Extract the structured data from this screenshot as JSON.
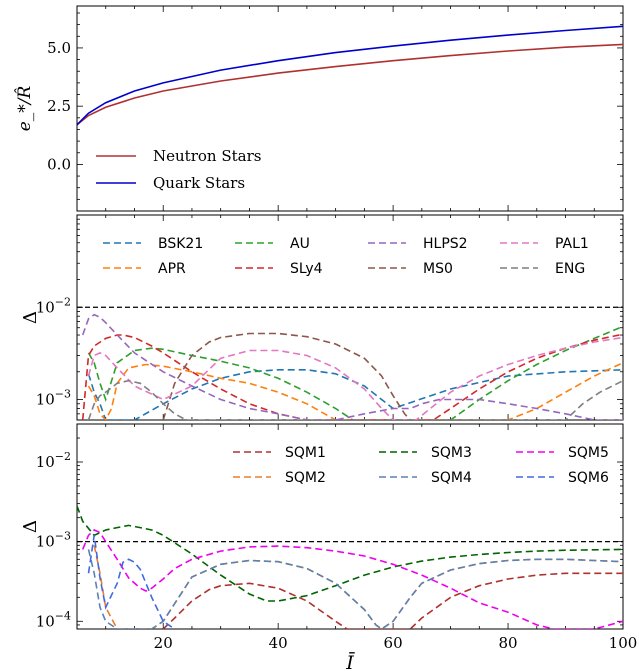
{
  "chart_data": [
    {
      "type": "line",
      "ylabel": "e_*/R̂",
      "xlim": [
        5,
        100
      ],
      "ylim": [
        -2.0,
        6.8
      ],
      "yticks": [
        "0.0",
        "2.5",
        "5.0"
      ],
      "yticks_values": [
        0,
        2.5,
        5
      ],
      "series": [
        {
          "name": "Neutron Stars",
          "color": "#b03030",
          "x": [
            5,
            7,
            10,
            15,
            20,
            30,
            40,
            50,
            60,
            70,
            80,
            90,
            100
          ],
          "y": [
            1.7,
            2.1,
            2.45,
            2.85,
            3.15,
            3.58,
            3.92,
            4.2,
            4.45,
            4.67,
            4.87,
            5.03,
            5.15
          ]
        },
        {
          "name": "Quark Stars",
          "color": "#0000cc",
          "x": [
            5,
            7,
            10,
            15,
            20,
            30,
            40,
            50,
            60,
            70,
            80,
            90,
            100
          ],
          "y": [
            1.7,
            2.2,
            2.65,
            3.15,
            3.5,
            4.05,
            4.45,
            4.8,
            5.08,
            5.33,
            5.55,
            5.75,
            5.93
          ]
        }
      ]
    },
    {
      "type": "line",
      "yscale": "log",
      "ylabel": "Δ",
      "xlim": [
        5,
        100
      ],
      "ylim": [
        0.0006,
        0.1
      ],
      "yticks": [
        "10",
        "10"
      ],
      "yticks_exp": [
        "−3",
        "−2"
      ],
      "yticks_values": [
        0.001,
        0.01
      ],
      "reference_line": 0.01,
      "series": [
        {
          "name": "BSK21",
          "color": "#1f77b4",
          "x": [
            7,
            8,
            9,
            10,
            11,
            12,
            15,
            20,
            25,
            30,
            35,
            40,
            45,
            50,
            55,
            60,
            70,
            80,
            90,
            100
          ],
          "y": [
            0.0019,
            0.0012,
            0.0009,
            0.0006,
            0.0006,
            0.0006,
            0.0006,
            0.0009,
            0.0013,
            0.0017,
            0.002,
            0.0021,
            0.0021,
            0.0019,
            0.0014,
            0.0008,
            0.0013,
            0.0018,
            0.002,
            0.0021
          ]
        },
        {
          "name": "APR",
          "color": "#ff7f0e",
          "x": [
            7,
            8,
            9,
            10,
            11,
            12,
            14,
            17,
            20,
            25,
            30,
            35,
            40,
            45,
            50,
            55,
            60,
            65,
            70,
            75,
            80,
            85,
            90,
            95,
            100
          ],
          "y": [
            0.0014,
            0.0011,
            0.0007,
            0.0006,
            0.0008,
            0.0015,
            0.0022,
            0.0024,
            0.0023,
            0.002,
            0.0017,
            0.0015,
            0.0012,
            0.0009,
            0.0006,
            0.0006,
            0.0006,
            0.0006,
            0.0006,
            0.0006,
            0.0006,
            0.0008,
            0.0012,
            0.0018,
            0.0025
          ]
        },
        {
          "name": "AU",
          "color": "#2ca02c",
          "x": [
            7,
            8,
            9,
            10,
            12,
            15,
            18,
            20,
            25,
            30,
            35,
            40,
            45,
            50,
            53,
            55,
            60,
            65,
            70,
            75,
            80,
            85,
            90,
            95,
            100
          ],
          "y": [
            0.0032,
            0.0025,
            0.0015,
            0.001,
            0.0025,
            0.0034,
            0.0036,
            0.0035,
            0.003,
            0.0026,
            0.0022,
            0.0017,
            0.0012,
            0.0008,
            0.0006,
            0.0006,
            0.0006,
            0.0006,
            0.0006,
            0.001,
            0.0016,
            0.0024,
            0.0034,
            0.0046,
            0.0062
          ]
        },
        {
          "name": "SLy4",
          "color": "#d62728",
          "x": [
            6,
            7,
            8,
            10,
            12,
            13,
            15,
            18,
            20,
            25,
            30,
            35,
            40,
            45,
            50,
            60,
            67,
            70,
            75,
            80,
            85,
            90,
            95,
            100
          ],
          "y": [
            0.0006,
            0.003,
            0.0038,
            0.0046,
            0.005,
            0.005,
            0.0047,
            0.0038,
            0.0032,
            0.002,
            0.0013,
            0.0009,
            0.0007,
            0.0006,
            0.0006,
            0.0006,
            0.0006,
            0.0008,
            0.0013,
            0.002,
            0.0028,
            0.0036,
            0.0044,
            0.0051
          ]
        },
        {
          "name": "HLPS2",
          "color": "#9467bd",
          "x": [
            6,
            7,
            8,
            9,
            10,
            12,
            15,
            20,
            25,
            30,
            35,
            40,
            45,
            50,
            55,
            60,
            63,
            65,
            68,
            70,
            75,
            80,
            85,
            90,
            95,
            100
          ],
          "y": [
            0.005,
            0.0075,
            0.0083,
            0.0078,
            0.0068,
            0.005,
            0.0032,
            0.002,
            0.0014,
            0.001,
            0.0008,
            0.0007,
            0.0006,
            0.0006,
            0.0007,
            0.0008,
            0.0008,
            0.0009,
            0.001,
            0.001,
            0.001,
            0.0009,
            0.0008,
            0.0007,
            0.0006,
            0.0006
          ]
        },
        {
          "name": "MS0",
          "color": "#8c564b",
          "x": [
            20,
            22,
            25,
            28,
            30,
            35,
            40,
            45,
            50,
            55,
            58,
            60,
            62,
            63
          ],
          "y": [
            0.0006,
            0.0015,
            0.003,
            0.0042,
            0.0047,
            0.0052,
            0.0052,
            0.0048,
            0.004,
            0.0028,
            0.0018,
            0.0011,
            0.0007,
            0.0006
          ]
        },
        {
          "name": "PAL1",
          "color": "#e377c2",
          "x": [
            7,
            8,
            9,
            10,
            12,
            15,
            20,
            25,
            30,
            35,
            40,
            45,
            50,
            55,
            58,
            60,
            62,
            64,
            70,
            75,
            80,
            85,
            90,
            95,
            100
          ],
          "y": [
            0.0018,
            0.003,
            0.0032,
            0.003,
            0.0022,
            0.0014,
            0.001,
            0.0014,
            0.0028,
            0.0034,
            0.0034,
            0.003,
            0.0022,
            0.0013,
            0.0008,
            0.0006,
            0.0006,
            0.0006,
            0.0012,
            0.0018,
            0.0024,
            0.003,
            0.0036,
            0.0042,
            0.0047
          ]
        },
        {
          "name": "ENG",
          "color": "#7f7f7f",
          "x": [
            7,
            8,
            9,
            10,
            12,
            14,
            16,
            18,
            20,
            22,
            24,
            25,
            90,
            93,
            96,
            100
          ],
          "y": [
            0.0006,
            0.0009,
            0.0011,
            0.0012,
            0.0015,
            0.0016,
            0.0015,
            0.0012,
            0.0009,
            0.0007,
            0.0006,
            0.0006,
            0.0006,
            0.0009,
            0.0012,
            0.0016
          ]
        }
      ],
      "legend": {
        "placement": "top",
        "ncol": 4
      }
    },
    {
      "type": "line",
      "yscale": "log",
      "ylabel": "Δ",
      "xlabel": "Ī",
      "xlim": [
        5,
        100
      ],
      "ylim": [
        8e-05,
        0.03
      ],
      "xticks": [
        "20",
        "40",
        "60",
        "80",
        "100"
      ],
      "xticks_values": [
        20,
        40,
        60,
        80,
        100
      ],
      "yticks": [
        "10",
        "10",
        "10"
      ],
      "yticks_exp": [
        "−4",
        "−3",
        "−2"
      ],
      "yticks_values": [
        0.0001,
        0.001,
        0.01
      ],
      "reference_line": 0.001,
      "series": [
        {
          "name": "SQM1",
          "color": "#b03030",
          "x": [
            20,
            22,
            25,
            28,
            30,
            35,
            40,
            45,
            50,
            52,
            55,
            60,
            63,
            65,
            70,
            75,
            80,
            85,
            90,
            95,
            100
          ],
          "y": [
            8e-05,
            0.00011,
            0.00018,
            0.00025,
            0.00028,
            0.0003,
            0.00026,
            0.00018,
            0.0001,
            8e-05,
            8e-05,
            8e-05,
            8e-05,
            0.00011,
            0.0002,
            0.00028,
            0.00034,
            0.00038,
            0.0004,
            0.0004,
            0.0004
          ]
        },
        {
          "name": "SQM2",
          "color": "#e87e2a",
          "x": [
            8,
            9,
            10,
            12,
            14,
            16,
            18,
            20,
            25,
            30,
            35,
            40,
            45,
            50,
            55,
            57,
            58,
            60,
            63,
            65,
            70,
            75,
            80,
            85,
            90,
            95,
            100
          ],
          "y": [
            0.0009,
            0.0004,
            0.00015,
            8e-05,
            8e-05,
            8e-05,
            8e-05,
            0.0001,
            0.00036,
            0.00052,
            0.00058,
            0.00056,
            0.00046,
            0.0003,
            0.00014,
            9e-05,
            8e-05,
            0.0001,
            0.0002,
            0.0003,
            0.00044,
            0.00053,
            0.00058,
            0.0006,
            0.0006,
            0.00058,
            0.00056
          ]
        },
        {
          "name": "SQM3",
          "color": "#006400",
          "x": [
            5,
            6,
            8,
            10,
            12,
            14,
            16,
            18,
            20,
            25,
            30,
            35,
            38,
            40,
            45,
            50,
            55,
            60,
            65,
            70,
            75,
            80,
            85,
            90,
            95,
            100
          ],
          "y": [
            0.0028,
            0.0018,
            0.0012,
            0.0014,
            0.0015,
            0.0016,
            0.0015,
            0.0014,
            0.0012,
            0.0007,
            0.00038,
            0.00022,
            0.00018,
            0.00018,
            0.00021,
            0.00028,
            0.00038,
            0.00048,
            0.00057,
            0.00064,
            0.00069,
            0.00073,
            0.00076,
            0.00078,
            0.00079,
            0.0008
          ]
        },
        {
          "name": "SQM4",
          "color": "#5a82b4",
          "x": [
            7,
            8,
            9,
            10,
            12,
            14,
            16,
            18,
            20,
            25,
            30,
            35,
            40,
            45,
            50,
            55,
            57,
            58,
            60,
            63,
            65,
            70,
            75,
            80,
            85,
            90,
            95,
            100
          ],
          "y": [
            0.0008,
            0.0004,
            0.00015,
            0.0001,
            8e-05,
            8e-05,
            8e-05,
            8e-05,
            0.0001,
            0.00036,
            0.00052,
            0.00058,
            0.00056,
            0.00046,
            0.0003,
            0.00014,
            9e-05,
            8e-05,
            0.0001,
            0.0002,
            0.0003,
            0.00044,
            0.00053,
            0.00058,
            0.0006,
            0.0006,
            0.00058,
            0.00056
          ]
        },
        {
          "name": "SQM5",
          "color": "#ee00ee",
          "x": [
            6,
            7,
            8,
            9,
            10,
            12,
            14,
            16,
            17,
            18,
            20,
            22,
            25,
            30,
            35,
            40,
            45,
            50,
            55,
            60,
            65,
            70,
            75,
            80,
            85,
            88,
            90,
            95,
            100
          ],
          "y": [
            0.0008,
            0.0012,
            0.0014,
            0.0013,
            0.001,
            0.0006,
            0.00035,
            0.00026,
            0.00024,
            0.00026,
            0.00034,
            0.00046,
            0.0006,
            0.00076,
            0.00086,
            0.00088,
            0.00084,
            0.00076,
            0.00066,
            0.00052,
            0.00038,
            0.00026,
            0.00017,
            0.00013,
            9e-05,
            8e-05,
            8e-05,
            8e-05,
            0.0001
          ]
        },
        {
          "name": "SQM6",
          "color": "#4169e1",
          "x": [
            7,
            8,
            9,
            10,
            12,
            13,
            14,
            15,
            16,
            18,
            20,
            22
          ],
          "y": [
            0.0004,
            0.0012,
            0.00035,
            0.00015,
            0.0003,
            0.00055,
            0.0006,
            0.00055,
            0.00045,
            0.0002,
            0.0001,
            8e-05
          ]
        }
      ],
      "legend": {
        "placement": "top-right",
        "ncol": 3
      }
    }
  ]
}
